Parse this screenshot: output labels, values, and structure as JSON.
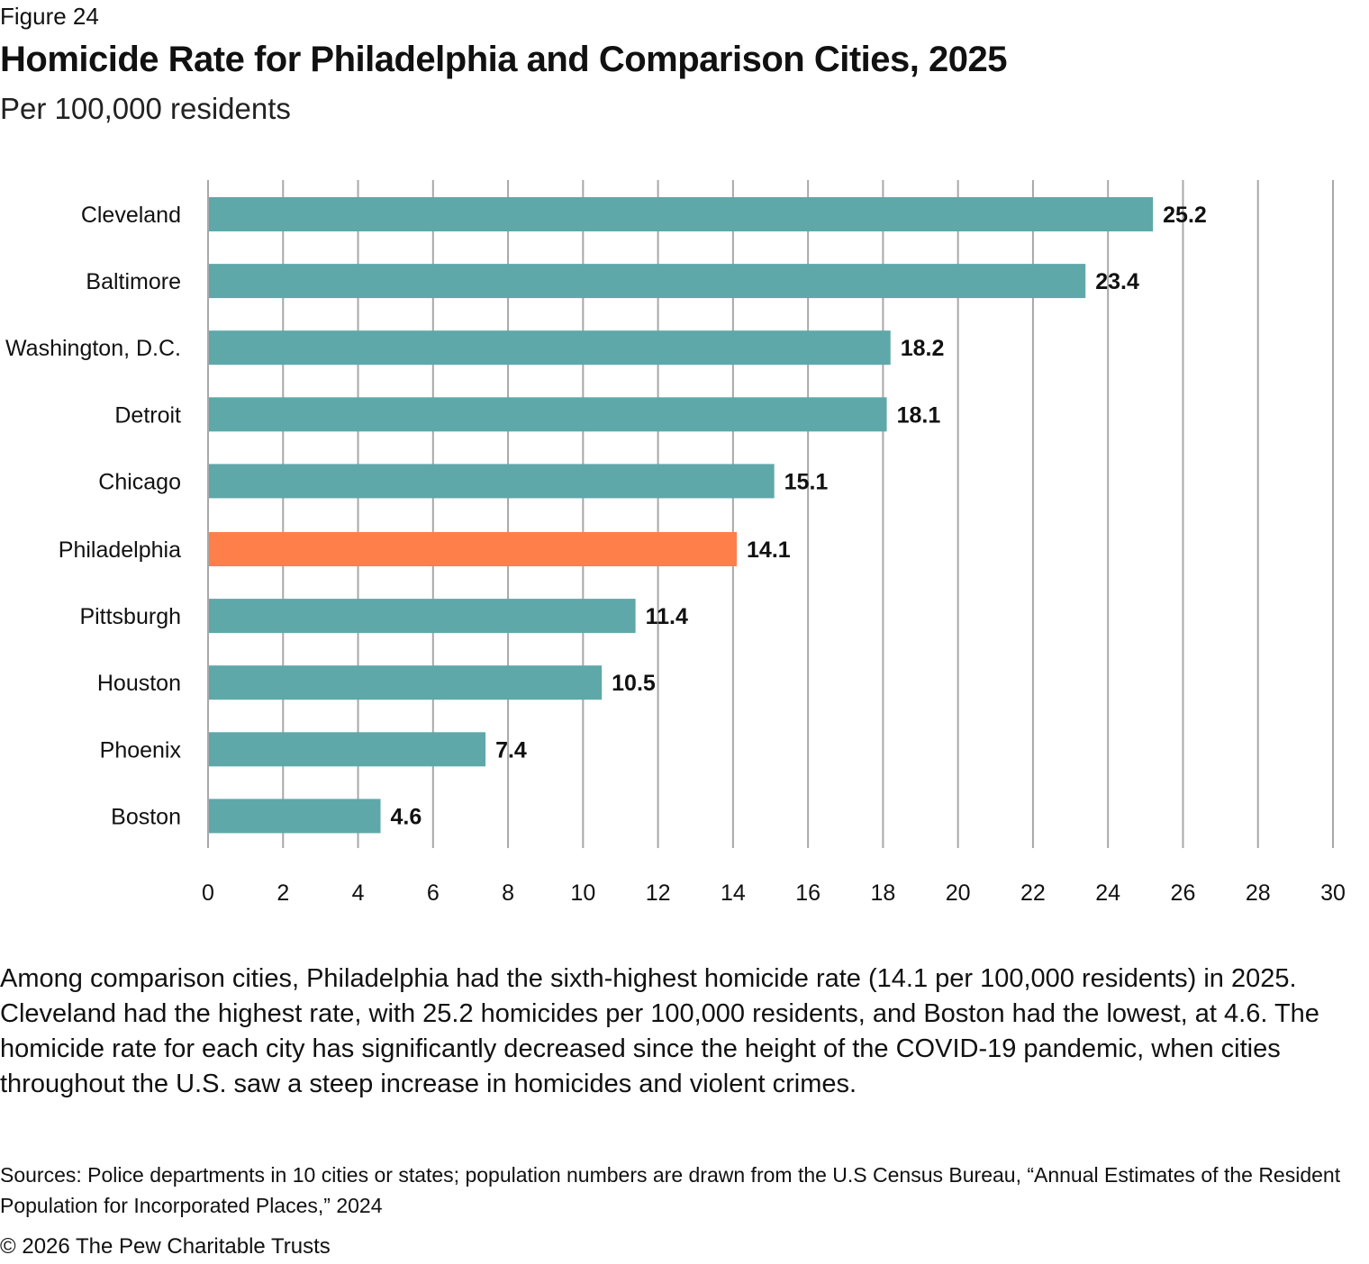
{
  "header": {
    "figure_label": "Figure 24",
    "title": "Homicide Rate for Philadelphia and Comparison Cities, 2025",
    "subtitle": "Per 100,000 residents"
  },
  "chart_data": {
    "type": "bar",
    "orientation": "horizontal",
    "title": "Homicide Rate for Philadelphia and Comparison Cities, 2025",
    "subtitle": "Per 100,000 residents",
    "xlabel": "",
    "ylabel": "",
    "categories": [
      "Cleveland",
      "Baltimore",
      "Washington, D.C.",
      "Detroit",
      "Chicago",
      "Philadelphia",
      "Pittsburgh",
      "Houston",
      "Phoenix",
      "Boston"
    ],
    "values": [
      25.2,
      23.4,
      18.2,
      18.1,
      15.1,
      14.1,
      11.4,
      10.5,
      7.4,
      4.6
    ],
    "value_labels": [
      "25.2",
      "23.4",
      "18.2",
      "18.1",
      "15.1",
      "14.1",
      "11.4",
      "10.5",
      "7.4",
      "4.6"
    ],
    "highlight": "Philadelphia",
    "colors": {
      "default": "#5EA8AA",
      "highlight": "#FF7F4A",
      "grid": "#A8A8A8"
    },
    "xlim": [
      0,
      30
    ],
    "xticks": [
      0,
      2,
      4,
      6,
      8,
      10,
      12,
      14,
      16,
      18,
      20,
      22,
      24,
      26,
      28,
      30
    ],
    "grid": true,
    "legend": "none"
  },
  "caption": "Among comparison cities, Philadelphia had the sixth-highest homicide rate (14.1 per 100,000 residents) in 2025. Cleveland had the highest rate, with 25.2 homicides per 100,000 residents, and Boston had the lowest, at 4.6. The homicide rate for each city has significantly decreased since the height of the COVID-19 pandemic, when cities throughout the U.S. saw a steep increase in homicides and violent crimes.",
  "footer": {
    "sources": "Sources: Police departments in 10 cities or states; population numbers are drawn from the U.S Census Bureau, “Annual Estimates of the Resident Population for Incorporated Places,” 2024",
    "copyright": "© 2026 The Pew Charitable Trusts"
  }
}
